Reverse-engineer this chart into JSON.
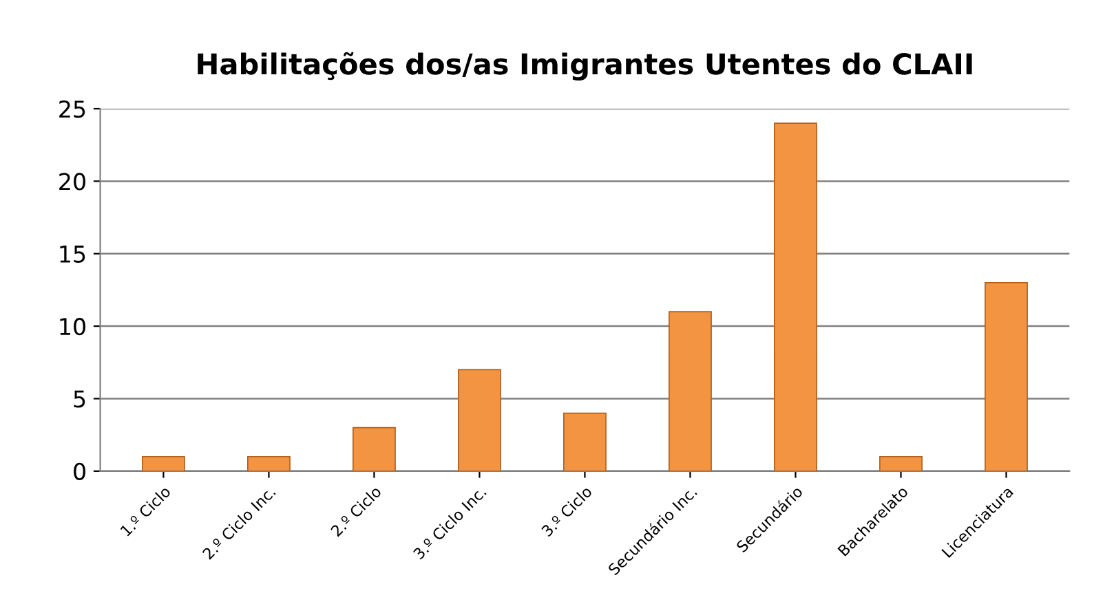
{
  "chart_data": {
    "type": "bar",
    "title": "Habilitações dos/as Imigrantes Utentes do CLAII",
    "categories": [
      "1.º Ciclo",
      "2.º Ciclo Inc.",
      "2.º Ciclo",
      "3.º Ciclo Inc.",
      "3.º Ciclo",
      "Secundário Inc.",
      "Secundário",
      "Bacharelato",
      "Licenciatura"
    ],
    "values": [
      1,
      1,
      3,
      7,
      4,
      11,
      24,
      1,
      13
    ],
    "color": "#f39442",
    "ylim": [
      0,
      25
    ],
    "yticks": [
      0,
      5,
      10,
      15,
      20,
      25
    ],
    "grid": "y",
    "legend": false
  }
}
